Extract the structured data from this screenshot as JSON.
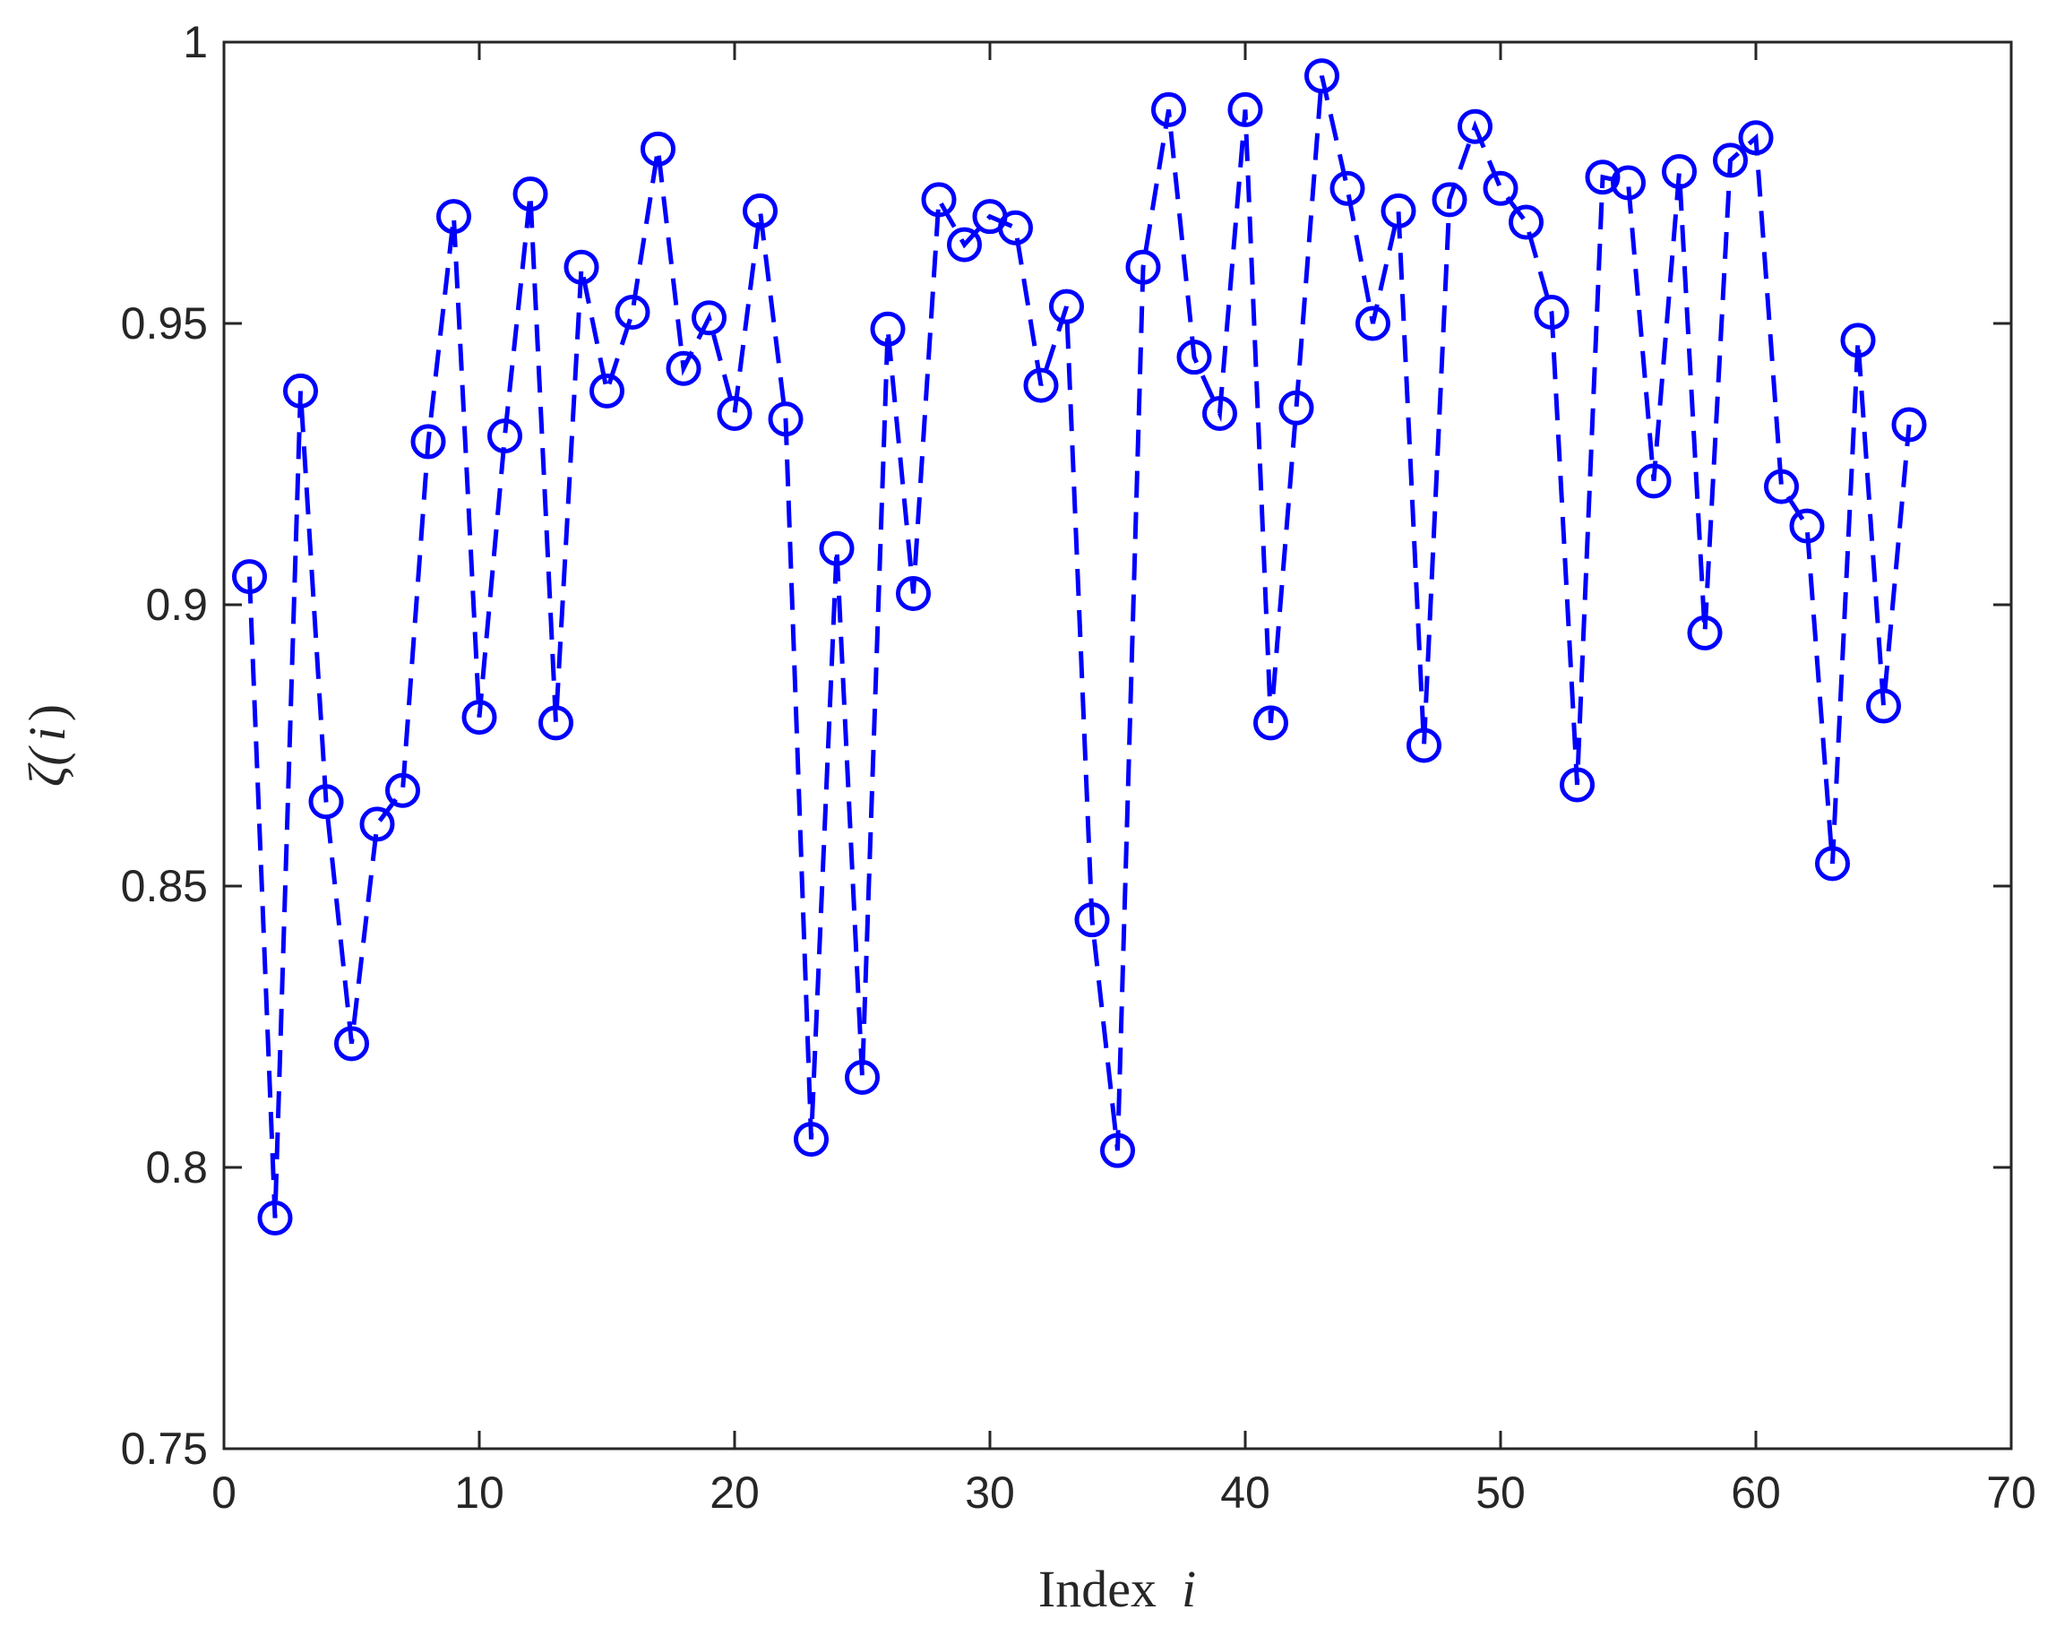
{
  "chart_data": {
    "type": "line",
    "title": "",
    "xlabel": "Index",
    "xlabel_var": "i",
    "ylabel_sym": "ζ(",
    "ylabel_var": "i",
    "ylabel_close": ")",
    "xlim": [
      0,
      70
    ],
    "ylim": [
      0.75,
      1
    ],
    "xticks": [
      0,
      10,
      20,
      30,
      40,
      50,
      60,
      70
    ],
    "xtick_labels": [
      "0",
      "10",
      "20",
      "30",
      "40",
      "50",
      "60",
      "70"
    ],
    "yticks": [
      0.75,
      0.8,
      0.85,
      0.9,
      0.95,
      1
    ],
    "ytick_labels": [
      "0.75",
      "0.8",
      "0.85",
      "0.9",
      "0.95",
      "1"
    ],
    "grid": false,
    "line_style": "dashed",
    "marker": "circle",
    "color": "#0000ff",
    "x": [
      1,
      2,
      3,
      4,
      5,
      6,
      7,
      8,
      9,
      10,
      11,
      12,
      13,
      14,
      15,
      16,
      17,
      18,
      19,
      20,
      21,
      22,
      23,
      24,
      25,
      26,
      27,
      28,
      29,
      30,
      31,
      32,
      33,
      34,
      35,
      36,
      37,
      38,
      39,
      40,
      41,
      42,
      43,
      44,
      45,
      46,
      47,
      48,
      49,
      50,
      51,
      52,
      53,
      54,
      55,
      56,
      57,
      58,
      59,
      60,
      61,
      62,
      63,
      64,
      65,
      66
    ],
    "y": [
      0.905,
      0.791,
      0.938,
      0.865,
      0.822,
      0.861,
      0.867,
      0.929,
      0.969,
      0.88,
      0.93,
      0.973,
      0.879,
      0.96,
      0.938,
      0.952,
      0.981,
      0.942,
      0.951,
      0.934,
      0.97,
      0.933,
      0.805,
      0.91,
      0.816,
      0.949,
      0.902,
      0.972,
      0.964,
      0.969,
      0.967,
      0.939,
      0.953,
      0.844,
      0.803,
      0.96,
      0.988,
      0.944,
      0.934,
      0.988,
      0.879,
      0.935,
      0.994,
      0.974,
      0.95,
      0.97,
      0.875,
      0.972,
      0.985,
      0.974,
      0.968,
      0.952,
      0.868,
      0.976,
      0.975,
      0.922,
      0.977,
      0.895,
      0.979,
      0.983,
      0.921,
      0.914,
      0.854,
      0.947,
      0.882,
      0.932
    ]
  }
}
